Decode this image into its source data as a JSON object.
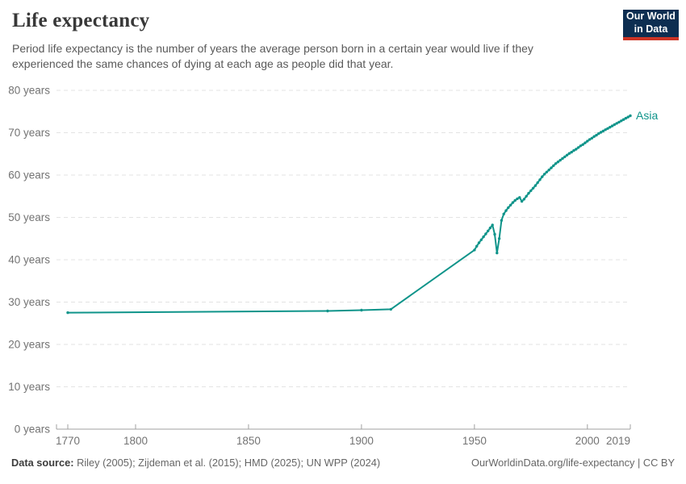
{
  "header": {
    "title": "Life expectancy",
    "subtitle": "Period life expectancy is the number of years the average person born in a certain year would live if they experienced the same chances of dying at each age as people did that year.",
    "logo": {
      "line1": "Our World",
      "line2": "in Data",
      "bg_color": "#0d2e51",
      "accent_color": "#cc3425"
    }
  },
  "footer": {
    "source_label": "Data source:",
    "source_text": " Riley (2005); Zijdeman et al. (2015); HMD (2025); UN WPP (2024)",
    "url_text": "OurWorldinData.org/life-expectancy | CC BY"
  },
  "chart_data": {
    "type": "line",
    "title": "Life expectancy",
    "xlabel": "",
    "ylabel": "",
    "ylim": [
      0,
      80
    ],
    "xlim": [
      1765,
      2019
    ],
    "grid": "horizontal-dashed",
    "legend_position": "end-of-line-label",
    "colors": {
      "grid": "#e3e3e3",
      "axis": "#a0a0a0",
      "tick_label": "#737373",
      "series": "#0f948a"
    },
    "y_ticks": [
      {
        "v": 0,
        "label": "0 years"
      },
      {
        "v": 10,
        "label": "10 years"
      },
      {
        "v": 20,
        "label": "20 years"
      },
      {
        "v": 30,
        "label": "30 years"
      },
      {
        "v": 40,
        "label": "40 years"
      },
      {
        "v": 50,
        "label": "50 years"
      },
      {
        "v": 60,
        "label": "60 years"
      },
      {
        "v": 70,
        "label": "70 years"
      },
      {
        "v": 80,
        "label": "80 years"
      }
    ],
    "x_ticks": [
      {
        "v": 1770,
        "label": "1770"
      },
      {
        "v": 1800,
        "label": "1800"
      },
      {
        "v": 1850,
        "label": "1850"
      },
      {
        "v": 1900,
        "label": "1900"
      },
      {
        "v": 1950,
        "label": "1950"
      },
      {
        "v": 2000,
        "label": "2000"
      },
      {
        "v": 2019,
        "label": "2019"
      }
    ],
    "series": [
      {
        "name": "Asia",
        "color": "#0f948a",
        "points": [
          [
            1770,
            27.5
          ],
          [
            1885,
            27.9
          ],
          [
            1900,
            28.1
          ],
          [
            1913,
            28.3
          ],
          [
            1950,
            42.3
          ],
          [
            1951,
            43.2
          ],
          [
            1952,
            44.0
          ],
          [
            1953,
            44.7
          ],
          [
            1954,
            45.4
          ],
          [
            1955,
            46.1
          ],
          [
            1956,
            46.8
          ],
          [
            1957,
            47.5
          ],
          [
            1958,
            48.2
          ],
          [
            1959,
            46.0
          ],
          [
            1960,
            41.6
          ],
          [
            1961,
            45.0
          ],
          [
            1962,
            49.3
          ],
          [
            1963,
            50.8
          ],
          [
            1964,
            51.6
          ],
          [
            1965,
            52.3
          ],
          [
            1966,
            52.9
          ],
          [
            1967,
            53.5
          ],
          [
            1968,
            54.0
          ],
          [
            1969,
            54.4
          ],
          [
            1970,
            54.7
          ],
          [
            1971,
            53.8
          ],
          [
            1972,
            54.3
          ],
          [
            1973,
            55.0
          ],
          [
            1974,
            55.7
          ],
          [
            1975,
            56.3
          ],
          [
            1976,
            56.9
          ],
          [
            1977,
            57.5
          ],
          [
            1978,
            58.2
          ],
          [
            1979,
            58.9
          ],
          [
            1980,
            59.6
          ],
          [
            1981,
            60.2
          ],
          [
            1982,
            60.7
          ],
          [
            1983,
            61.2
          ],
          [
            1984,
            61.7
          ],
          [
            1985,
            62.2
          ],
          [
            1986,
            62.7
          ],
          [
            1987,
            63.1
          ],
          [
            1988,
            63.5
          ],
          [
            1989,
            63.9
          ],
          [
            1990,
            64.3
          ],
          [
            1991,
            64.7
          ],
          [
            1992,
            65.1
          ],
          [
            1993,
            65.4
          ],
          [
            1994,
            65.8
          ],
          [
            1995,
            66.1
          ],
          [
            1996,
            66.5
          ],
          [
            1997,
            66.9
          ],
          [
            1998,
            67.2
          ],
          [
            1999,
            67.6
          ],
          [
            2000,
            68.0
          ],
          [
            2001,
            68.4
          ],
          [
            2002,
            68.7
          ],
          [
            2003,
            69.1
          ],
          [
            2004,
            69.4
          ],
          [
            2005,
            69.8
          ],
          [
            2006,
            70.1
          ],
          [
            2007,
            70.4
          ],
          [
            2008,
            70.7
          ],
          [
            2009,
            71.0
          ],
          [
            2010,
            71.3
          ],
          [
            2011,
            71.6
          ],
          [
            2012,
            71.9
          ],
          [
            2013,
            72.2
          ],
          [
            2014,
            72.5
          ],
          [
            2015,
            72.8
          ],
          [
            2016,
            73.1
          ],
          [
            2017,
            73.4
          ],
          [
            2018,
            73.7
          ],
          [
            2019,
            74.0
          ]
        ]
      }
    ]
  }
}
